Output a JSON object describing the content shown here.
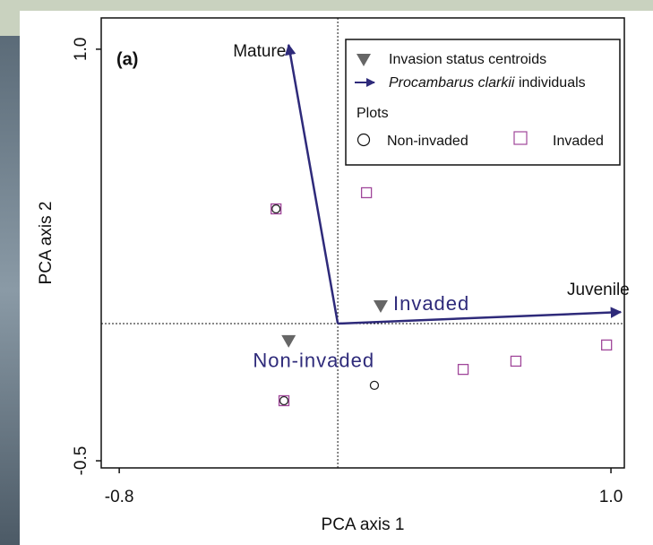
{
  "chart_data": {
    "type": "scatter",
    "panel_label": "(a)",
    "xlabel": "PCA axis 1",
    "ylabel": "PCA axis 2",
    "xlim": [
      -0.866,
      1.049
    ],
    "ylim": [
      -0.526,
      1.114
    ],
    "xticks": [
      -0.8,
      {
        "value": 1,
        "label": "1.0"
      }
    ],
    "yticks": [
      -0.5,
      {
        "value": 1,
        "label": "1.0"
      }
    ],
    "legend_position": "upper right",
    "legend_title": "Plots",
    "series": [
      {
        "name": "Non-invaded",
        "marker": "circle",
        "color": "#222222",
        "x": [
          -0.226,
          -0.197,
          0.134
        ],
        "y": [
          0.418,
          -0.281,
          -0.225
        ]
      },
      {
        "name": "Invaded",
        "marker": "square",
        "color": "#a0479a",
        "x": [
          -0.226,
          0.105,
          -0.197,
          0.459,
          0.652,
          0.984
        ],
        "y": [
          0.418,
          0.477,
          -0.281,
          -0.167,
          -0.137,
          -0.078
        ]
      }
    ],
    "centroids": {
      "name": "Invasion status centroids",
      "color": "#666666",
      "label_color": "#2e2a7a",
      "labels": [
        "Invaded",
        "Non-invaded"
      ],
      "x": [
        0.157,
        -0.18
      ],
      "y": [
        0.062,
        -0.065
      ]
    },
    "vectors": {
      "name_italic": "Procambarus clarkii",
      "name_rest": "individuals",
      "color": "#2e2a7a",
      "labels": [
        "Mature",
        "Juvenile"
      ],
      "x": [
        -0.18,
        1.036
      ],
      "y": [
        1.016,
        0.042
      ]
    }
  }
}
